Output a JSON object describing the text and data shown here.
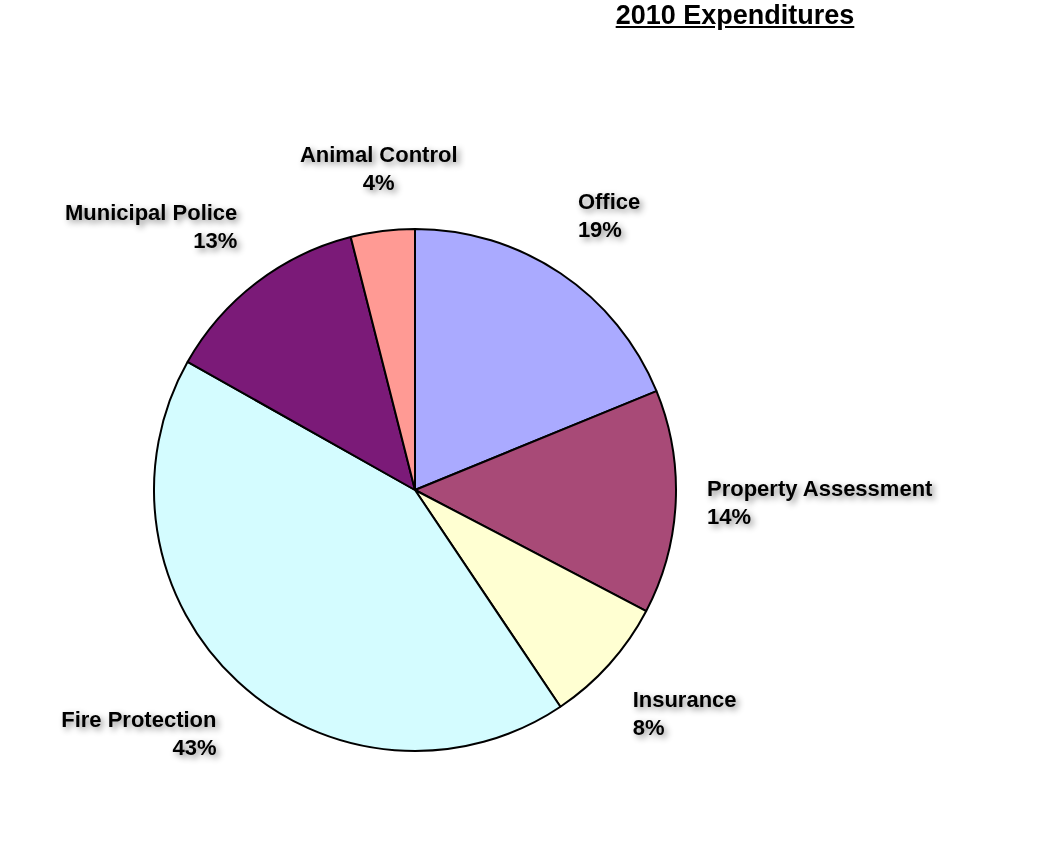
{
  "chart_data": {
    "type": "pie",
    "title": "2010 Expenditures",
    "categories": [
      "Office",
      "Property Assessment",
      "Insurance",
      "Fire Protection",
      "Municipal Police",
      "Animal Control"
    ],
    "values": [
      19,
      14,
      8,
      43,
      13,
      4
    ],
    "value_labels": [
      "19%",
      "14%",
      "8%",
      "43%",
      "13%",
      "4%"
    ],
    "colors": [
      "#aaaaff",
      "#a84a77",
      "#ffffd2",
      "#d4fcff",
      "#7b1a78",
      "#ff9a94"
    ],
    "legend": false
  }
}
